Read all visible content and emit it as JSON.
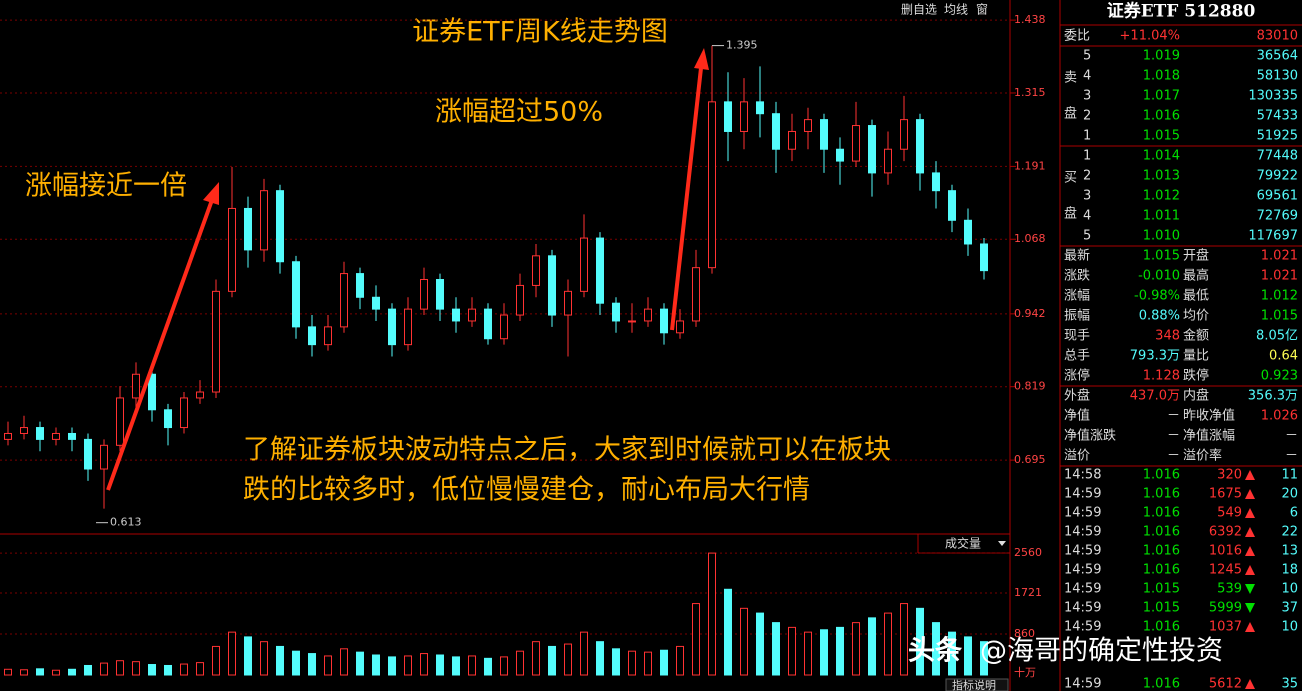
{
  "toolbar": [
    "删自选",
    "均线",
    "窗"
  ],
  "annotations": [
    "证券ETF周K线走势图",
    "涨幅超过50%",
    "涨幅接近一倍",
    "了解证券板块波动特点之后，大家到时候就可以在板块",
    "跌的比较多时，低位慢慢建仓，耐心布局大行情"
  ],
  "watermark": [
    "头条",
    "@海哥的确定性投资"
  ],
  "chart_data": [
    {
      "type": "candlestick",
      "up_color": "#ff3232",
      "down_color": "#54fcfc",
      "grid": true,
      "ylim": [
        0.577,
        1.472
      ],
      "yticks": [
        1.438,
        1.315,
        1.191,
        1.068,
        0.942,
        0.819,
        0.695
      ],
      "max_label": 1.395,
      "min_label": 0.613,
      "ohlc": [
        [
          0.73,
          0.76,
          0.72,
          0.74
        ],
        [
          0.74,
          0.77,
          0.73,
          0.75
        ],
        [
          0.75,
          0.76,
          0.71,
          0.73
        ],
        [
          0.73,
          0.75,
          0.72,
          0.74
        ],
        [
          0.74,
          0.75,
          0.71,
          0.73
        ],
        [
          0.73,
          0.74,
          0.66,
          0.68
        ],
        [
          0.68,
          0.73,
          0.613,
          0.72
        ],
        [
          0.72,
          0.82,
          0.71,
          0.8
        ],
        [
          0.8,
          0.86,
          0.78,
          0.84
        ],
        [
          0.84,
          0.85,
          0.76,
          0.78
        ],
        [
          0.78,
          0.79,
          0.72,
          0.75
        ],
        [
          0.75,
          0.81,
          0.74,
          0.8
        ],
        [
          0.8,
          0.83,
          0.79,
          0.81
        ],
        [
          0.81,
          1.0,
          0.8,
          0.98
        ],
        [
          0.98,
          1.19,
          0.97,
          1.12
        ],
        [
          1.12,
          1.14,
          1.02,
          1.05
        ],
        [
          1.05,
          1.17,
          1.03,
          1.15
        ],
        [
          1.15,
          1.16,
          1.01,
          1.03
        ],
        [
          1.03,
          1.04,
          0.9,
          0.92
        ],
        [
          0.92,
          0.94,
          0.87,
          0.89
        ],
        [
          0.89,
          0.94,
          0.88,
          0.92
        ],
        [
          0.92,
          1.03,
          0.91,
          1.01
        ],
        [
          1.01,
          1.02,
          0.95,
          0.97
        ],
        [
          0.97,
          0.99,
          0.93,
          0.95
        ],
        [
          0.95,
          0.96,
          0.87,
          0.89
        ],
        [
          0.89,
          0.97,
          0.88,
          0.95
        ],
        [
          0.95,
          1.02,
          0.94,
          1.0
        ],
        [
          1.0,
          1.01,
          0.93,
          0.95
        ],
        [
          0.95,
          0.97,
          0.91,
          0.93
        ],
        [
          0.93,
          0.97,
          0.92,
          0.95
        ],
        [
          0.95,
          0.96,
          0.89,
          0.9
        ],
        [
          0.9,
          0.96,
          0.89,
          0.94
        ],
        [
          0.94,
          1.01,
          0.93,
          0.99
        ],
        [
          0.99,
          1.06,
          0.97,
          1.04
        ],
        [
          1.04,
          1.05,
          0.92,
          0.94
        ],
        [
          0.94,
          1.0,
          0.87,
          0.98
        ],
        [
          0.98,
          1.11,
          0.97,
          1.07
        ],
        [
          1.07,
          1.08,
          0.94,
          0.96
        ],
        [
          0.96,
          0.97,
          0.91,
          0.93
        ],
        [
          0.93,
          0.96,
          0.91,
          0.93
        ],
        [
          0.93,
          0.97,
          0.92,
          0.95
        ],
        [
          0.95,
          0.96,
          0.89,
          0.91
        ],
        [
          0.91,
          0.95,
          0.9,
          0.93
        ],
        [
          0.93,
          1.05,
          0.92,
          1.02
        ],
        [
          1.02,
          1.395,
          1.01,
          1.3
        ],
        [
          1.3,
          1.35,
          1.2,
          1.25
        ],
        [
          1.25,
          1.34,
          1.22,
          1.3
        ],
        [
          1.3,
          1.36,
          1.24,
          1.28
        ],
        [
          1.28,
          1.3,
          1.18,
          1.22
        ],
        [
          1.22,
          1.28,
          1.2,
          1.25
        ],
        [
          1.25,
          1.29,
          1.22,
          1.27
        ],
        [
          1.27,
          1.28,
          1.18,
          1.22
        ],
        [
          1.22,
          1.24,
          1.16,
          1.2
        ],
        [
          1.2,
          1.3,
          1.19,
          1.26
        ],
        [
          1.26,
          1.27,
          1.14,
          1.18
        ],
        [
          1.18,
          1.25,
          1.16,
          1.22
        ],
        [
          1.22,
          1.31,
          1.2,
          1.27
        ],
        [
          1.27,
          1.28,
          1.15,
          1.18
        ],
        [
          1.18,
          1.2,
          1.12,
          1.15
        ],
        [
          1.15,
          1.16,
          1.08,
          1.1
        ],
        [
          1.1,
          1.12,
          1.04,
          1.06
        ],
        [
          1.06,
          1.07,
          1.0,
          1.015
        ]
      ]
    },
    {
      "type": "bar",
      "title": "成交量",
      "button": "指标说明",
      "unit": "十万",
      "ylim": [
        0,
        2667
      ],
      "yticks": [
        2560,
        1721,
        860
      ],
      "values": [
        120,
        110,
        130,
        100,
        120,
        200,
        250,
        300,
        280,
        220,
        200,
        230,
        260,
        600,
        900,
        800,
        700,
        600,
        500,
        450,
        400,
        550,
        480,
        420,
        380,
        400,
        450,
        420,
        380,
        400,
        350,
        380,
        500,
        700,
        600,
        650,
        900,
        700,
        550,
        500,
        480,
        520,
        600,
        1500,
        2560,
        1800,
        1400,
        1300,
        1100,
        1000,
        900,
        950,
        1000,
        1100,
        1200,
        1300,
        1500,
        1400,
        1100,
        900,
        800,
        700
      ]
    }
  ],
  "panel": {
    "title": "证券ETF 512880",
    "weibi": [
      "委比",
      "+11.04%",
      "83010"
    ],
    "sell_label": [
      "卖",
      "盘"
    ],
    "sell": [
      [
        "5",
        "1.019",
        "36564"
      ],
      [
        "4",
        "1.018",
        "58130"
      ],
      [
        "3",
        "1.017",
        "130335"
      ],
      [
        "2",
        "1.016",
        "57433"
      ],
      [
        "1",
        "1.015",
        "51925"
      ]
    ],
    "buy_label": [
      "买",
      "盘"
    ],
    "buy": [
      [
        "1",
        "1.014",
        "77448"
      ],
      [
        "2",
        "1.013",
        "79922"
      ],
      [
        "3",
        "1.012",
        "69561"
      ],
      [
        "4",
        "1.011",
        "72769"
      ],
      [
        "5",
        "1.010",
        "117697"
      ]
    ],
    "stats": [
      [
        "最新",
        "1.015",
        "开盘",
        "1.021"
      ],
      [
        "涨跌",
        "-0.010",
        "最高",
        "1.021"
      ],
      [
        "涨幅",
        "-0.98%",
        "最低",
        "1.012"
      ],
      [
        "振幅",
        "0.88%",
        "均价",
        "1.015"
      ],
      [
        "现手",
        "348",
        "金额",
        "8.05亿"
      ],
      [
        "总手",
        "793.3万",
        "量比",
        "0.64"
      ],
      [
        "涨停",
        "1.128",
        "跌停",
        "0.923"
      ],
      [
        "外盘",
        "437.0万",
        "内盘",
        "356.3万"
      ],
      [
        "净值",
        "－",
        "昨收净值",
        "1.026"
      ],
      [
        "净值涨跌",
        "－",
        "净值涨幅",
        "－"
      ],
      [
        "溢价",
        "－",
        "溢价率",
        "－"
      ]
    ],
    "trades": [
      [
        "14:58",
        "1.016",
        "320",
        "11"
      ],
      [
        "14:59",
        "1.016",
        "1675",
        "20"
      ],
      [
        "14:59",
        "1.016",
        "549",
        "6"
      ],
      [
        "14:59",
        "1.016",
        "6392",
        "22"
      ],
      [
        "14:59",
        "1.016",
        "1016",
        "13"
      ],
      [
        "14:59",
        "1.016",
        "1245",
        "18"
      ],
      [
        "14:59",
        "1.015",
        "539",
        "10"
      ],
      [
        "14:59",
        "1.015",
        "5999",
        "37"
      ],
      [
        "14:59",
        "1.016",
        "1037",
        "10"
      ],
      [
        "14:59",
        "1.016",
        "5612",
        "35"
      ]
    ]
  }
}
